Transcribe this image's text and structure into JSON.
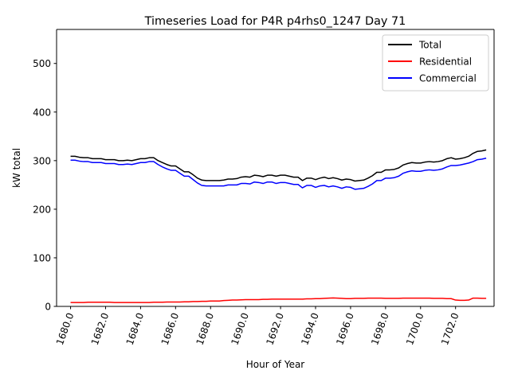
{
  "chart_data": {
    "type": "line",
    "title": "Timeseries Load for P4R p4rhs0_1247  Day 71",
    "xlabel": "Hour of Year",
    "ylabel": "kW total",
    "xlim": [
      1679.2,
      1704.2
    ],
    "ylim": [
      0,
      570
    ],
    "xticks": [
      1680,
      1682,
      1684,
      1686,
      1688,
      1690,
      1692,
      1694,
      1696,
      1698,
      1700,
      1702
    ],
    "xtick_labels": [
      "1680.0",
      "1682.0",
      "1684.0",
      "1686.0",
      "1688.0",
      "1690.0",
      "1692.0",
      "1694.0",
      "1696.0",
      "1698.0",
      "1700.0",
      "1702.0"
    ],
    "yticks": [
      0,
      100,
      200,
      300,
      400,
      500
    ],
    "ytick_labels": [
      "0",
      "100",
      "200",
      "300",
      "400",
      "500"
    ],
    "legend_position": "top-right",
    "x": [
      1680.0,
      1680.25,
      1680.5,
      1680.75,
      1681.0,
      1681.25,
      1681.5,
      1681.75,
      1682.0,
      1682.25,
      1682.5,
      1682.75,
      1683.0,
      1683.25,
      1683.5,
      1683.75,
      1684.0,
      1684.25,
      1684.5,
      1684.75,
      1685.0,
      1685.25,
      1685.5,
      1685.75,
      1686.0,
      1686.25,
      1686.5,
      1686.75,
      1687.0,
      1687.25,
      1687.5,
      1687.75,
      1688.0,
      1688.25,
      1688.5,
      1688.75,
      1689.0,
      1689.25,
      1689.5,
      1689.75,
      1690.0,
      1690.25,
      1690.5,
      1690.75,
      1691.0,
      1691.25,
      1691.5,
      1691.75,
      1692.0,
      1692.25,
      1692.5,
      1692.75,
      1693.0,
      1693.25,
      1693.5,
      1693.75,
      1694.0,
      1694.25,
      1694.5,
      1694.75,
      1695.0,
      1695.25,
      1695.5,
      1695.75,
      1696.0,
      1696.25,
      1696.5,
      1696.75,
      1697.0,
      1697.25,
      1697.5,
      1697.75,
      1698.0,
      1698.25,
      1698.5,
      1698.75,
      1699.0,
      1699.25,
      1699.5,
      1699.75,
      1700.0,
      1700.25,
      1700.5,
      1700.75,
      1701.0,
      1701.25,
      1701.5,
      1701.75,
      1702.0,
      1702.25,
      1702.5,
      1702.75,
      1703.0,
      1703.25,
      1703.5,
      1703.75
    ],
    "series": [
      {
        "name": "Total",
        "color": "#000000",
        "values": [
          309,
          309,
          307,
          306,
          306,
          304,
          304,
          304,
          302,
          302,
          302,
          300,
          300,
          301,
          300,
          302,
          304,
          304,
          306,
          306,
          300,
          296,
          292,
          289,
          289,
          283,
          277,
          277,
          271,
          264,
          260,
          259,
          259,
          259,
          259,
          260,
          262,
          262,
          263,
          266,
          267,
          266,
          270,
          269,
          267,
          270,
          270,
          268,
          270,
          270,
          268,
          266,
          266,
          259,
          264,
          264,
          261,
          264,
          266,
          263,
          265,
          263,
          260,
          262,
          261,
          258,
          259,
          260,
          264,
          269,
          276,
          276,
          281,
          281,
          282,
          285,
          291,
          294,
          296,
          295,
          295,
          297,
          298,
          297,
          298,
          300,
          304,
          306,
          303,
          304,
          306,
          309,
          315,
          319,
          320,
          322
        ]
      },
      {
        "name": "Residential",
        "color": "#ff0000",
        "values": [
          8,
          8,
          8,
          8,
          8.5,
          8.5,
          8.5,
          8.5,
          8.5,
          8.5,
          8,
          8,
          8,
          8,
          8,
          8,
          8,
          8,
          8,
          8.5,
          8.5,
          8.5,
          9,
          9,
          9,
          9,
          9.5,
          9.5,
          10,
          10,
          10.5,
          10.5,
          11,
          11,
          11,
          12,
          12.5,
          13,
          13,
          13.5,
          14,
          14,
          14,
          14,
          14.5,
          14.5,
          15,
          15,
          15,
          15,
          15,
          15,
          15,
          15,
          15.5,
          15.5,
          16,
          16,
          16.5,
          17,
          17.5,
          17,
          16.5,
          16,
          16,
          16.5,
          16.5,
          16.5,
          17,
          17,
          17,
          17,
          16.5,
          16.5,
          16.5,
          16.5,
          17,
          17,
          17,
          17,
          17,
          17,
          17,
          16.5,
          16.5,
          16.5,
          16,
          16,
          13,
          12.5,
          12.5,
          13,
          17,
          17,
          16.5,
          16.5
        ]
      },
      {
        "name": "Commercial",
        "color": "#0000ff",
        "values": [
          301,
          301,
          299,
          298,
          298,
          296,
          296,
          296,
          294,
          294,
          294,
          292,
          292,
          293,
          292,
          294,
          296,
          296,
          298,
          298,
          292,
          287,
          283,
          280,
          280,
          274,
          268,
          268,
          261,
          254,
          249,
          248,
          248,
          248,
          248,
          248,
          250,
          250,
          250,
          253,
          253,
          252,
          256,
          255,
          253,
          256,
          256,
          253,
          255,
          255,
          253,
          251,
          251,
          244,
          249,
          249,
          245,
          248,
          249,
          246,
          248,
          246,
          243,
          246,
          245,
          241,
          242,
          243,
          247,
          252,
          259,
          259,
          264,
          264,
          265,
          268,
          274,
          277,
          279,
          278,
          278,
          280,
          281,
          280,
          281,
          283,
          287,
          290,
          290,
          291,
          293,
          295,
          298,
          302,
          303,
          305
        ]
      }
    ]
  }
}
